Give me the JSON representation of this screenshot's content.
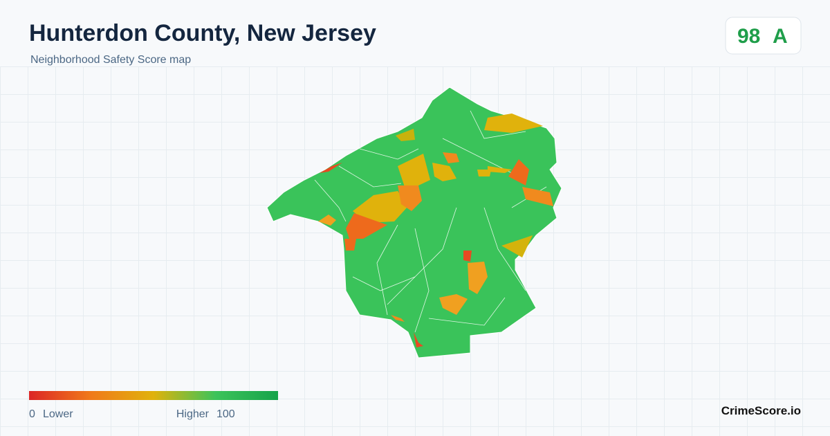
{
  "header": {
    "title": "Hunterdon County, New Jersey",
    "subtitle": "Neighborhood Safety Score map"
  },
  "score": {
    "value": 98,
    "grade": "A"
  },
  "legend": {
    "min": 0,
    "min_label": "Lower",
    "max_label": "Higher",
    "max": 100
  },
  "brand": "CrimeScore.io"
}
